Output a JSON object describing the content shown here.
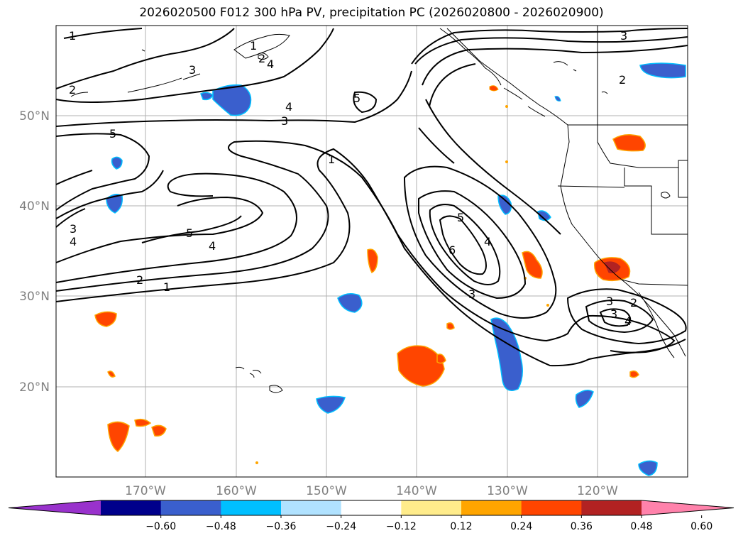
{
  "title": "2026020500 F012 300 hPa PV, precipitation PC (2026020800 - 2026020900)",
  "lon_labels": [
    "170°W",
    "160°W",
    "150°W",
    "140°W",
    "130°W",
    "120°W"
  ],
  "lat_labels": [
    "20°N",
    "30°N",
    "40°N",
    "50°N"
  ],
  "contour_labels": [
    "1",
    "2",
    "3",
    "4",
    "5",
    "1",
    "2",
    "3",
    "4",
    "5",
    "3",
    "4",
    "3",
    "2",
    "1",
    "5",
    "4",
    "5",
    "6",
    "3",
    "4",
    "3",
    "2",
    "4",
    "2",
    "3",
    "1"
  ],
  "colorbar": {
    "ticks": [
      "−0.60",
      "−0.48",
      "−0.36",
      "−0.24",
      "−0.12",
      "0.12",
      "0.24",
      "0.36",
      "0.48",
      "0.60"
    ],
    "colors": [
      "#9932cc",
      "#00008b",
      "#3a5fcd",
      "#00bfff",
      "#b0e2ff",
      "#ffffff",
      "#ffec8b",
      "#ffa500",
      "#ff4500",
      "#b22222",
      "#ff82ab"
    ]
  }
}
